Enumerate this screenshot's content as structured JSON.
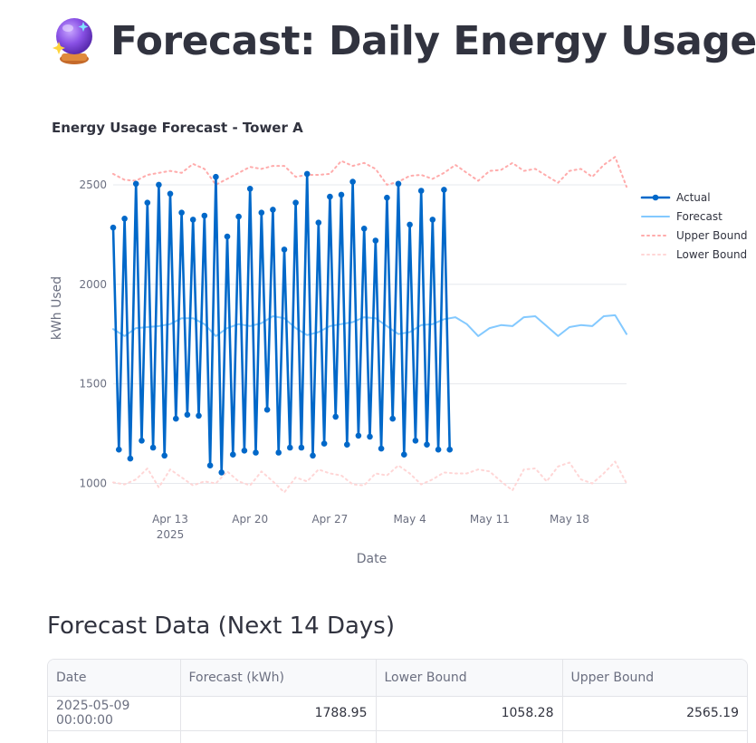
{
  "page": {
    "title": "Forecast: Daily Energy Usage",
    "icon": "crystal-ball-icon"
  },
  "chart_data": {
    "type": "line",
    "title": "Energy Usage Forecast - Tower A",
    "xlabel": "Date",
    "ylabel": "kWh Used",
    "x_ticks": [
      "Apr 13",
      "Apr 20",
      "Apr 27",
      "May 4",
      "May 11",
      "May 18"
    ],
    "x_tick_year": "2025",
    "x_range": [
      "2025-04-08",
      "2025-05-23"
    ],
    "y_ticks": [
      1000,
      1500,
      2000,
      2500
    ],
    "ylim": [
      925,
      2700
    ],
    "grid": true,
    "legend": "right",
    "colors": {
      "actual": "#0068c9",
      "forecast": "#83c9ff",
      "upper": "#ffabab",
      "lower": "#ffd6d6"
    },
    "series": [
      {
        "name": "Actual",
        "style": "line+markers",
        "start_date": "2025-04-08",
        "step_days": 0.5,
        "values": [
          2285,
          1170,
          2330,
          1125,
          2505,
          1215,
          2410,
          1180,
          2500,
          1140,
          2455,
          1325,
          2360,
          1345,
          2325,
          1340,
          2345,
          1090,
          2540,
          1055,
          2240,
          1145,
          2340,
          1165,
          2480,
          1155,
          2360,
          1370,
          2375,
          1155,
          2175,
          1180,
          2410,
          1180,
          2555,
          1140,
          2310,
          1200,
          2440,
          1335,
          2450,
          1195,
          2515,
          1240,
          2280,
          1235,
          2220,
          1175,
          2435,
          1325,
          2505,
          1145,
          2300,
          1215,
          2470,
          1195,
          2325,
          1170,
          2475,
          1170
        ]
      },
      {
        "name": "Forecast",
        "style": "line",
        "start_date": "2025-04-08",
        "step_days": 1,
        "values": [
          1775,
          1740,
          1780,
          1785,
          1790,
          1800,
          1830,
          1830,
          1800,
          1740,
          1780,
          1800,
          1790,
          1805,
          1840,
          1830,
          1780,
          1745,
          1760,
          1790,
          1800,
          1810,
          1835,
          1830,
          1790,
          1750,
          1760,
          1795,
          1800,
          1825,
          1835,
          1800,
          1740,
          1780,
          1795,
          1790,
          1835,
          1840,
          1790,
          1740,
          1785,
          1795,
          1790,
          1840,
          1845,
          1750
        ]
      },
      {
        "name": "Upper Bound",
        "style": "dotted",
        "start_date": "2025-04-08",
        "step_days": 1,
        "values": [
          2555,
          2525,
          2520,
          2550,
          2560,
          2570,
          2560,
          2605,
          2580,
          2500,
          2530,
          2560,
          2590,
          2580,
          2595,
          2595,
          2540,
          2550,
          2550,
          2555,
          2620,
          2595,
          2610,
          2580,
          2500,
          2515,
          2545,
          2550,
          2530,
          2560,
          2600,
          2560,
          2520,
          2570,
          2575,
          2610,
          2570,
          2580,
          2545,
          2510,
          2570,
          2580,
          2540,
          2600,
          2640,
          2490
        ]
      },
      {
        "name": "Lower Bound",
        "style": "dotted",
        "start_date": "2025-04-08",
        "step_days": 1,
        "values": [
          1005,
          995,
          1020,
          1075,
          980,
          1070,
          1030,
          990,
          1010,
          1000,
          1060,
          1010,
          990,
          1060,
          1010,
          955,
          1030,
          1010,
          1070,
          1050,
          1040,
          995,
          990,
          1050,
          1040,
          1090,
          1050,
          995,
          1020,
          1055,
          1050,
          1050,
          1070,
          1060,
          1010,
          965,
          1070,
          1075,
          1010,
          1085,
          1105,
          1020,
          1000,
          1050,
          1110,
          1000
        ]
      }
    ]
  },
  "table": {
    "title": "Forecast Data (Next 14 Days)",
    "columns": [
      "Date",
      "Forecast (kWh)",
      "Lower Bound",
      "Upper Bound"
    ],
    "rows": [
      [
        "2025-05-09 00:00:00",
        "1788.95",
        "1058.28",
        "2565.19"
      ],
      [
        "",
        "",
        "",
        ""
      ]
    ]
  }
}
